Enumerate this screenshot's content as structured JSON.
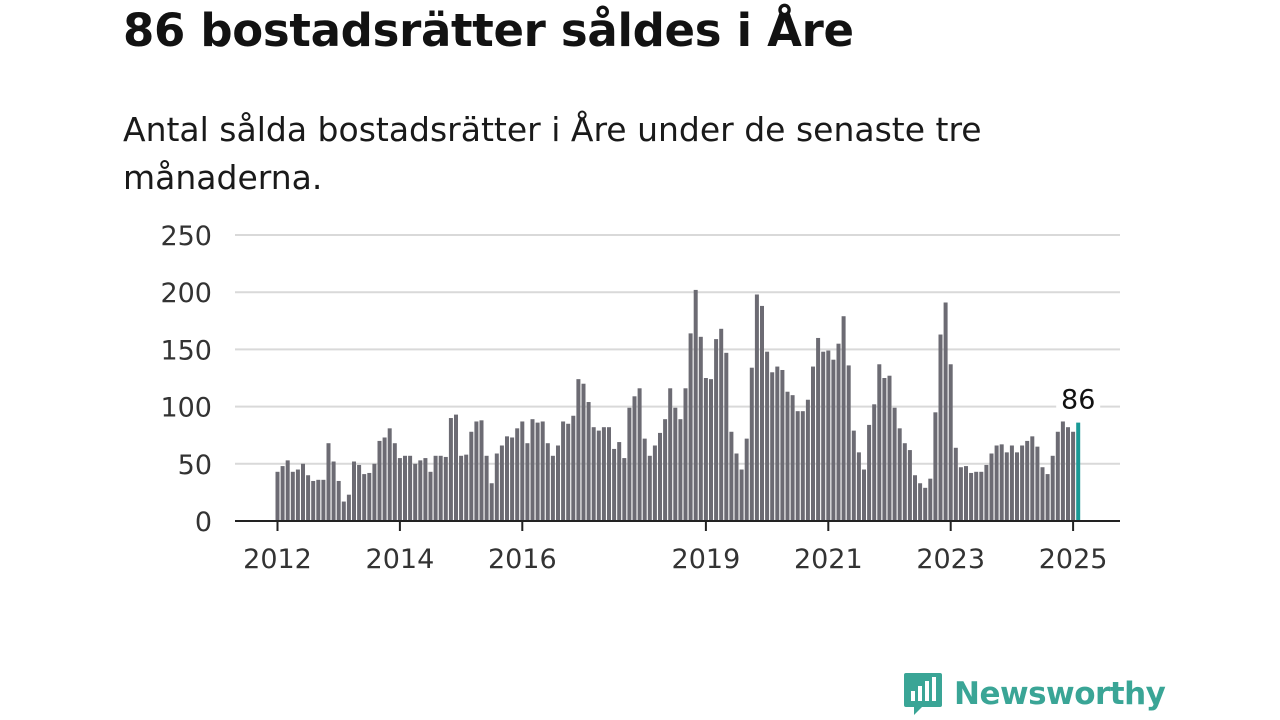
{
  "title": "86 bostadsrätter såldes i Åre",
  "subtitle": "Antal sålda bostadsrätter i Åre under de senaste tre månaderna.",
  "brand": {
    "name": "Newsworthy",
    "icon": "newsworthy-logo-icon"
  },
  "colors": {
    "bar": "#6c6b73",
    "highlight": "#1a9a96",
    "grid": "#d9d9d9",
    "axis": "#222222"
  },
  "chart_data": {
    "type": "bar",
    "start": "2012-01",
    "ylim": [
      0,
      250
    ],
    "yticks": [
      0,
      50,
      100,
      150,
      200,
      250
    ],
    "xticks": [
      {
        "label": "2012",
        "date": "2012-01"
      },
      {
        "label": "2014",
        "date": "2014-01"
      },
      {
        "label": "2016",
        "date": "2016-01"
      },
      {
        "label": "2019",
        "date": "2019-01"
      },
      {
        "label": "2021",
        "date": "2021-01"
      },
      {
        "label": "2023",
        "date": "2023-01"
      },
      {
        "label": "2025",
        "date": "2025-01"
      }
    ],
    "values": [
      43,
      48,
      53,
      43,
      45,
      50,
      40,
      35,
      36,
      36,
      68,
      52,
      35,
      17,
      23,
      52,
      49,
      41,
      42,
      50,
      70,
      73,
      81,
      68,
      55,
      57,
      57,
      50,
      53,
      55,
      43,
      57,
      57,
      56,
      90,
      93,
      57,
      58,
      78,
      87,
      88,
      57,
      33,
      59,
      66,
      74,
      73,
      81,
      87,
      68,
      89,
      86,
      87,
      68,
      57,
      66,
      87,
      85,
      92,
      124,
      120,
      104,
      82,
      79,
      82,
      82,
      63,
      69,
      55,
      99,
      109,
      116,
      72,
      57,
      66,
      77,
      89,
      116,
      99,
      89,
      116,
      164,
      202,
      161,
      125,
      124,
      159,
      168,
      147,
      78,
      59,
      45,
      72,
      134,
      198,
      188,
      148,
      130,
      135,
      132,
      113,
      110,
      96,
      96,
      106,
      135,
      160,
      148,
      149,
      141,
      155,
      179,
      136,
      79,
      60,
      45,
      84,
      102,
      137,
      125,
      127,
      99,
      81,
      68,
      62,
      40,
      33,
      29,
      37,
      95,
      163,
      191,
      137,
      64,
      47,
      48,
      42,
      43,
      43,
      49,
      59,
      66,
      67,
      60,
      66,
      60,
      66,
      70,
      74,
      65,
      47,
      41,
      57,
      78,
      87,
      82,
      78,
      86
    ],
    "highlight_label": "86"
  }
}
